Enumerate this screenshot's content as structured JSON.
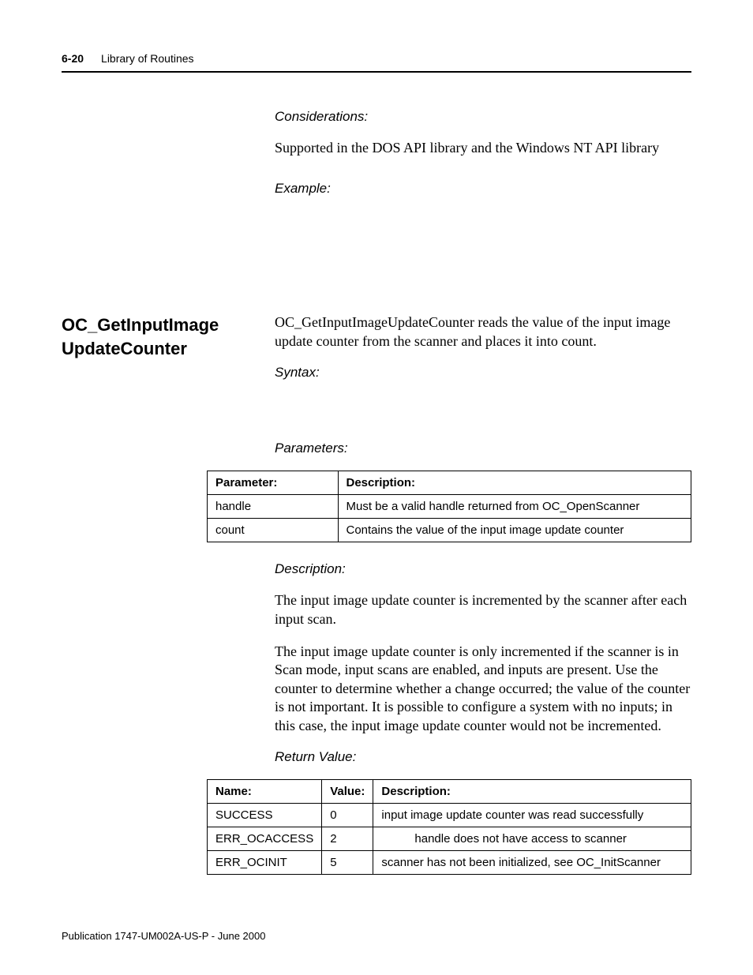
{
  "header": {
    "page_number": "6-20",
    "section": "Library of Routines"
  },
  "top": {
    "considerations_label": "Considerations:",
    "considerations_body": "Supported in the DOS API library and the Windows NT API library",
    "example_label": "Example:"
  },
  "routine": {
    "heading_line1": "OC_GetInputImage",
    "heading_line2": "UpdateCounter",
    "intro": "OC_GetInputImageUpdateCounter reads the value of the input image update counter from the scanner and places it into count.",
    "syntax_label": "Syntax:",
    "parameters_label": "Parameters:",
    "params_table": {
      "headers": [
        "Parameter:",
        "Description:"
      ],
      "rows": [
        [
          "handle",
          "Must be a valid handle returned from OC_OpenScanner"
        ],
        [
          "count",
          "Contains the value of the input image update counter"
        ]
      ]
    },
    "description_label": "Description:",
    "description_p1": "The input image update counter is incremented by the scanner after each input scan.",
    "description_p2": "The input image update counter is only incremented if the scanner is in Scan mode, input scans are enabled, and inputs are present. Use the counter to determine whether a change occurred; the value of the counter is not important. It is possible to configure a system with no inputs; in this case, the input image update counter would not be incremented.",
    "return_label": "Return Value:",
    "return_table": {
      "headers": [
        "Name:",
        "Value:",
        "Description:"
      ],
      "rows": [
        [
          "SUCCESS",
          "0",
          "input image update counter was read successfully"
        ],
        [
          "ERR_OCACCESS",
          "2",
          "handle does not have access to scanner"
        ],
        [
          "ERR_OCINIT",
          "5",
          "scanner has not been initialized, see OC_InitScanner"
        ]
      ]
    }
  },
  "footer": {
    "publication": "Publication 1747-UM002A-US-P - June 2000"
  }
}
